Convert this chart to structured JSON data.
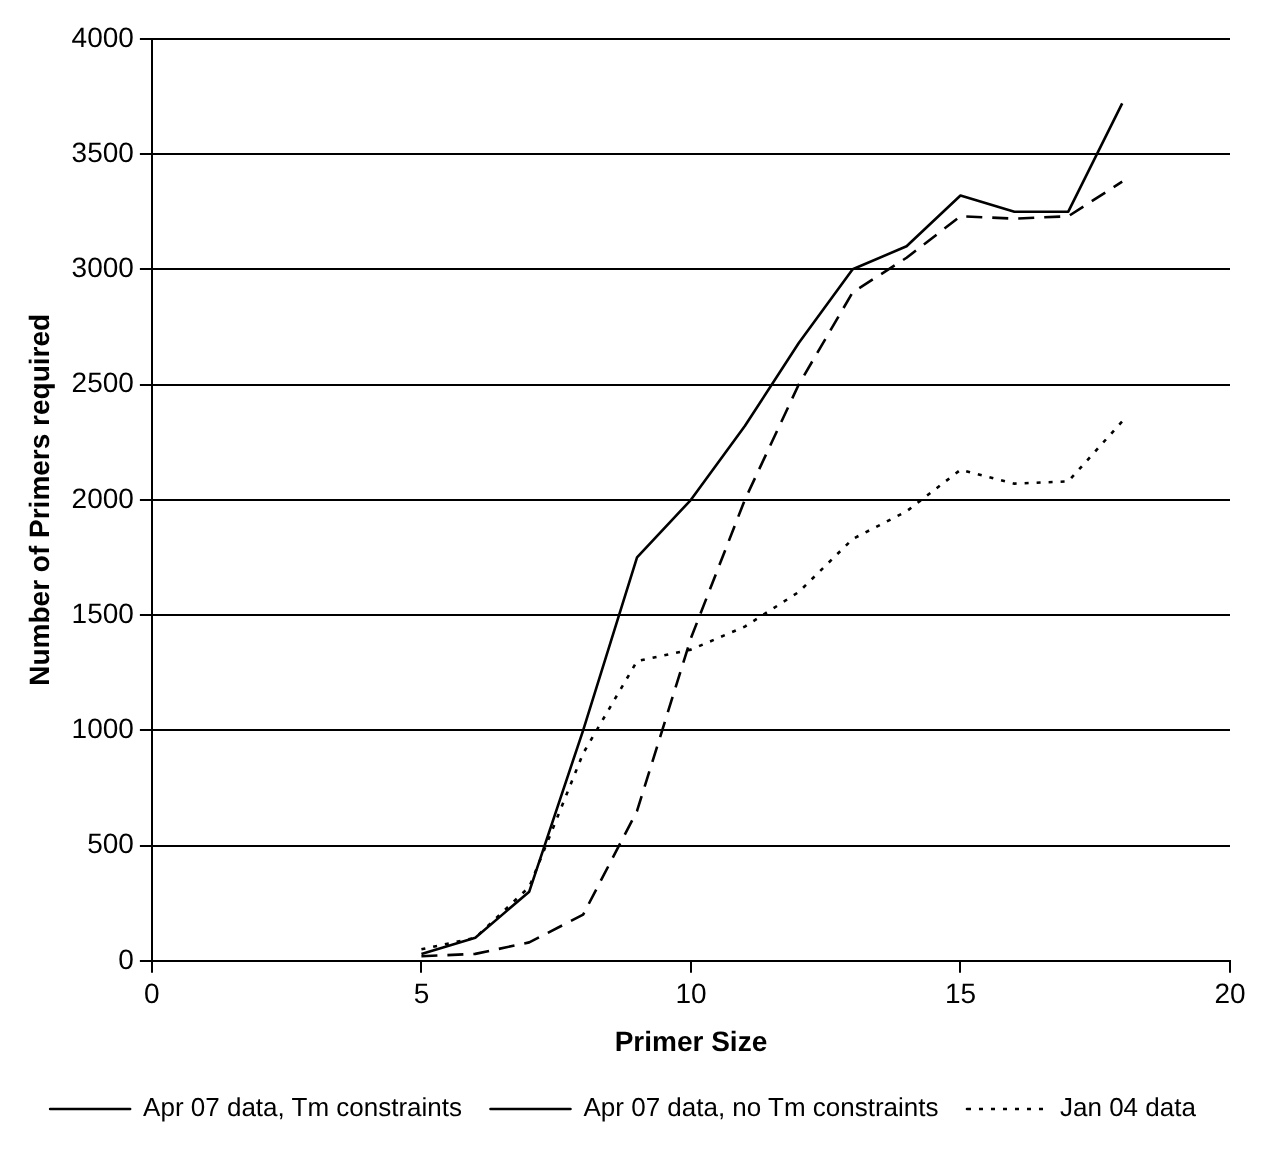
{
  "chart_data": {
    "type": "line",
    "xlabel": "Primer Size",
    "ylabel": "Number of Primers required",
    "x": [
      5,
      6,
      7,
      8,
      9,
      10,
      11,
      12,
      13,
      14,
      15,
      16,
      17,
      18
    ],
    "xlim": [
      0,
      20
    ],
    "xticks": [
      0,
      5,
      10,
      15,
      20
    ],
    "ylim": [
      0,
      4000
    ],
    "yticks": [
      0,
      500,
      1000,
      1500,
      2000,
      2500,
      3000,
      3500,
      4000
    ],
    "grid": "y",
    "legend": "bottom",
    "marker": "none",
    "series": [
      {
        "name": "Apr 07 data, Tm constraints",
        "color": "#000000",
        "line_style": "solid",
        "values": [
          30,
          100,
          300,
          1000,
          1750,
          2000,
          2320,
          2680,
          3000,
          3100,
          3320,
          3250,
          3250,
          3720
        ]
      },
      {
        "name": "Apr 07 data, no Tm constraints",
        "color": "#000000",
        "line_style": "dashed",
        "values": [
          20,
          30,
          80,
          200,
          650,
          1400,
          2000,
          2500,
          2900,
          3050,
          3230,
          3220,
          3230,
          3380
        ]
      },
      {
        "name": "Jan 04 data",
        "color": "#000000",
        "line_style": "dotted",
        "values": [
          50,
          100,
          320,
          900,
          1300,
          1350,
          1450,
          1600,
          1830,
          1950,
          2130,
          2070,
          2080,
          2340
        ]
      }
    ]
  }
}
